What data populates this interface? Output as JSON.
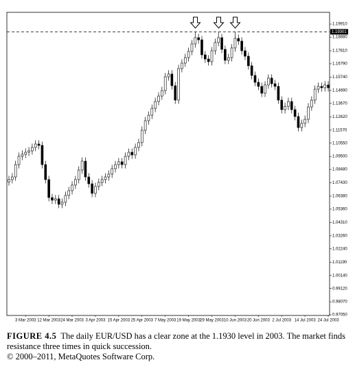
{
  "chart_data": {
    "type": "candlestick",
    "categories": [
      null,
      null,
      null,
      null,
      null,
      "3 Mar 2003",
      null,
      null,
      null,
      null,
      null,
      null,
      "12 Mar 2003",
      null,
      null,
      null,
      null,
      null,
      null,
      "24 Mar 2003",
      null,
      null,
      null,
      null,
      null,
      null,
      "3 Apr 2003",
      null,
      null,
      null,
      null,
      null,
      null,
      "15 Apr 2003",
      null,
      null,
      null,
      null,
      null,
      null,
      "25 Apr 2003",
      null,
      null,
      null,
      null,
      null,
      null,
      "7 May 2003",
      null,
      null,
      null,
      null,
      null,
      null,
      "19 May 2003",
      null,
      null,
      null,
      null,
      null,
      null,
      "29 May 2003",
      null,
      null,
      null,
      null,
      null,
      null,
      "10 Jun 2003",
      null,
      null,
      null,
      null,
      null,
      null,
      "20 Jun 2003",
      null,
      null,
      null,
      null,
      null,
      null,
      "2 Jul 2003",
      null,
      null,
      null,
      null,
      null,
      null,
      "14 Jul 2003",
      null,
      null,
      null,
      null,
      null,
      null,
      "24 Jul 2003"
    ],
    "open": [
      1.075,
      1.0768,
      1.0789,
      1.0886,
      1.0951,
      1.0967,
      1.0983,
      1.0994,
      1.1021,
      1.1048,
      1.1037,
      1.0886,
      1.0768,
      1.0627,
      1.0606,
      1.0617,
      1.0574,
      1.059,
      1.0644,
      1.0681,
      1.0725,
      1.0768,
      1.0843,
      1.0913,
      1.0789,
      1.0735,
      1.066,
      1.0714,
      1.0746,
      1.0768,
      1.0789,
      1.0811,
      1.0854,
      1.0886,
      1.0908,
      1.0886,
      1.0951,
      1.0983,
      1.0962,
      1.1021,
      1.1059,
      1.1156,
      1.1231,
      1.1274,
      1.1328,
      1.1382,
      1.1425,
      1.1468,
      1.1576,
      1.1598,
      1.1506,
      1.1393,
      1.1641,
      1.1684,
      1.1727,
      1.1776,
      1.1835,
      1.1884,
      1.1867,
      1.1749,
      1.1716,
      1.1695,
      1.1781,
      1.1846,
      1.1884,
      1.1792,
      1.1706,
      1.1727,
      1.1803,
      1.1878,
      1.1857,
      1.1781,
      1.1738,
      1.1663,
      1.1587,
      1.1533,
      1.1501,
      1.1447,
      1.1512,
      1.1566,
      1.1522,
      1.1501,
      1.1393,
      1.1318,
      1.1344,
      1.1382,
      1.1318,
      1.1264,
      1.1177,
      1.121,
      1.1242,
      1.1339,
      1.1393,
      1.1479,
      1.1501,
      1.149,
      1.1512
    ],
    "high": [
      1.0798,
      1.0819,
      1.0916,
      1.0981,
      1.0997,
      1.1013,
      1.1024,
      1.1051,
      1.1078,
      1.1078,
      1.1067,
      1.0916,
      1.0798,
      1.0657,
      1.0647,
      1.0647,
      1.062,
      1.0674,
      1.0711,
      1.0755,
      1.0798,
      1.0873,
      1.0943,
      1.0943,
      1.0819,
      1.0765,
      1.0744,
      1.0776,
      1.0798,
      1.0819,
      1.0841,
      1.0884,
      1.0916,
      1.0938,
      1.0938,
      1.0981,
      1.1013,
      1.1013,
      1.1051,
      1.1089,
      1.1186,
      1.1261,
      1.1304,
      1.1358,
      1.1412,
      1.1455,
      1.1498,
      1.1606,
      1.1628,
      1.1628,
      1.1536,
      1.1671,
      1.1714,
      1.1757,
      1.1806,
      1.1865,
      1.193,
      1.1914,
      1.1897,
      1.1779,
      1.1746,
      1.1811,
      1.1876,
      1.1931,
      1.1914,
      1.1822,
      1.1757,
      1.1833,
      1.1929,
      1.1908,
      1.1887,
      1.1811,
      1.1768,
      1.1693,
      1.1617,
      1.1563,
      1.1531,
      1.1542,
      1.1596,
      1.1596,
      1.1552,
      1.1531,
      1.1423,
      1.1374,
      1.1412,
      1.1412,
      1.1348,
      1.1294,
      1.124,
      1.1272,
      1.1369,
      1.1423,
      1.1509,
      1.1531,
      1.1531,
      1.1542,
      1.1542
    ],
    "low": [
      1.072,
      1.0738,
      1.0759,
      1.0856,
      1.0921,
      1.0937,
      1.0953,
      1.0964,
      1.0991,
      1.1007,
      1.0856,
      1.0738,
      1.0597,
      1.0576,
      1.0576,
      1.0544,
      1.0544,
      1.056,
      1.0614,
      1.0651,
      1.0695,
      1.0738,
      1.0813,
      1.0759,
      1.0705,
      1.063,
      1.063,
      1.0684,
      1.0716,
      1.0738,
      1.0759,
      1.0781,
      1.0824,
      1.0856,
      1.0856,
      1.0856,
      1.0921,
      1.0932,
      1.0932,
      1.0991,
      1.1029,
      1.1126,
      1.1201,
      1.1244,
      1.1298,
      1.1352,
      1.1395,
      1.1438,
      1.1546,
      1.1476,
      1.1363,
      1.1363,
      1.1611,
      1.1654,
      1.1697,
      1.1746,
      1.1805,
      1.1837,
      1.1719,
      1.1686,
      1.1665,
      1.1665,
      1.1751,
      1.1816,
      1.1762,
      1.1676,
      1.1676,
      1.1697,
      1.1773,
      1.1827,
      1.1751,
      1.1708,
      1.1633,
      1.1557,
      1.1503,
      1.1471,
      1.1417,
      1.1417,
      1.1482,
      1.1492,
      1.1471,
      1.1363,
      1.1288,
      1.1288,
      1.1314,
      1.1288,
      1.1234,
      1.1147,
      1.1147,
      1.118,
      1.1212,
      1.1309,
      1.1363,
      1.1449,
      1.146,
      1.146,
      1.146
    ],
    "close": [
      1.0768,
      1.0789,
      1.0886,
      1.0951,
      1.0967,
      1.0983,
      1.0994,
      1.1021,
      1.1048,
      1.1037,
      1.0886,
      1.0768,
      1.0627,
      1.0606,
      1.0617,
      1.0574,
      1.059,
      1.0644,
      1.0681,
      1.0725,
      1.0768,
      1.0843,
      1.0913,
      1.0789,
      1.0735,
      1.066,
      1.0714,
      1.0746,
      1.0768,
      1.0789,
      1.0811,
      1.0854,
      1.0886,
      1.0908,
      1.0886,
      1.0951,
      1.0983,
      1.0962,
      1.1021,
      1.1059,
      1.1156,
      1.1231,
      1.1274,
      1.1328,
      1.1382,
      1.1425,
      1.1468,
      1.1576,
      1.1598,
      1.1506,
      1.1393,
      1.1641,
      1.1684,
      1.1727,
      1.1776,
      1.1835,
      1.1884,
      1.1867,
      1.1749,
      1.1716,
      1.1695,
      1.1781,
      1.1846,
      1.1884,
      1.1792,
      1.1706,
      1.1727,
      1.1803,
      1.1878,
      1.1857,
      1.1781,
      1.1738,
      1.1663,
      1.1587,
      1.1533,
      1.1501,
      1.1447,
      1.1512,
      1.1566,
      1.1522,
      1.1501,
      1.1393,
      1.1318,
      1.1344,
      1.1382,
      1.1318,
      1.1264,
      1.1177,
      1.121,
      1.1242,
      1.1339,
      1.1393,
      1.1479,
      1.1501,
      1.149,
      1.1512,
      1.149
    ],
    "up_color": "#ffffff",
    "down_color": "#000000",
    "ylim": [
      0.97,
      1.2083
    ],
    "yticks": [
      {
        "value": 1.1991,
        "label": "1.19910"
      },
      {
        "value": 1.1888,
        "label": "1.18880"
      },
      {
        "value": 1.1781,
        "label": "1.17810"
      },
      {
        "value": 1.1679,
        "label": "1.16790"
      },
      {
        "value": 1.1574,
        "label": "1.15740"
      },
      {
        "value": 1.1469,
        "label": "1.14690"
      },
      {
        "value": 1.1367,
        "label": "1.13670"
      },
      {
        "value": 1.1262,
        "label": "1.12620"
      },
      {
        "value": 1.1157,
        "label": "1.11570"
      },
      {
        "value": 1.1055,
        "label": "1.10550"
      },
      {
        "value": 1.095,
        "label": "1.09500"
      },
      {
        "value": 1.0848,
        "label": "1.08480"
      },
      {
        "value": 1.0743,
        "label": "1.07430"
      },
      {
        "value": 1.0638,
        "label": "1.06380"
      },
      {
        "value": 1.0536,
        "label": "1.05360"
      },
      {
        "value": 1.0431,
        "label": "1.04310"
      },
      {
        "value": 1.0326,
        "label": "1.03260"
      },
      {
        "value": 1.0224,
        "label": "1.02240"
      },
      {
        "value": 1.0119,
        "label": "1.01190"
      },
      {
        "value": 1.0014,
        "label": "1.00140"
      },
      {
        "value": 0.9912,
        "label": "0.99120"
      },
      {
        "value": 0.9807,
        "label": "0.98070"
      },
      {
        "value": 0.9705,
        "label": "0.97050"
      }
    ],
    "level": {
      "value": 1.19301,
      "label": "1.19301"
    },
    "grid": false
  },
  "caption": {
    "figure": "FIGURE 4.5",
    "text": "The daily EUR/USD has a clear zone at the 1.1930 level in 2003. The market finds resistance three times in quick succession.",
    "copyright": "© 2000–2011, MetaQuotes Software Corp."
  }
}
